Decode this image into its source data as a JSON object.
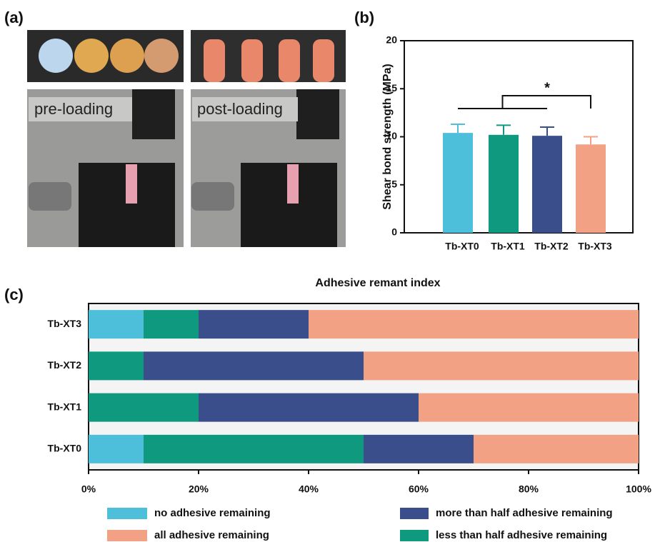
{
  "panel_labels": [
    "(a)",
    "(b)",
    "(c)"
  ],
  "photo_labels": [
    "pre-loading",
    "post-loading"
  ],
  "chart_data": [
    {
      "type": "bar",
      "y_label": "Shear bond strength (MPa)",
      "categories": [
        "Tb-XT0",
        "Tb-XT1",
        "Tb-XT2",
        "Tb-XT3"
      ],
      "values": [
        10.4,
        10.2,
        10.1,
        9.2
      ],
      "errors": [
        0.9,
        1.0,
        0.9,
        0.8
      ],
      "colors": [
        "#4dbfdb",
        "#0f9a7f",
        "#3b4e8c",
        "#f2a184"
      ],
      "ylim": [
        0,
        20
      ],
      "yticks": [
        0,
        5,
        10,
        15,
        20
      ],
      "annotation": "*"
    },
    {
      "type": "stacked_barh",
      "title": "Adhesive remant index",
      "categories": [
        "Tb-XT0",
        "Tb-XT1",
        "Tb-XT2",
        "Tb-XT3"
      ],
      "series": [
        {
          "name": "no adhesive remaining",
          "color": "#4dbfdb",
          "values": [
            10,
            0,
            0,
            10
          ]
        },
        {
          "name": "less than half adhesive remaining",
          "color": "#0f9a7f",
          "values": [
            40,
            20,
            10,
            10
          ]
        },
        {
          "name": "more than half adhesive remaining",
          "color": "#3b4e8c",
          "values": [
            20,
            40,
            40,
            20
          ]
        },
        {
          "name": "all adhesive remaining",
          "color": "#f2a184",
          "values": [
            30,
            40,
            50,
            60
          ]
        }
      ],
      "xlim": [
        0,
        100
      ],
      "xticks": [
        {
          "value": 0,
          "label": "0%"
        },
        {
          "value": 20,
          "label": "20%"
        },
        {
          "value": 40,
          "label": "40%"
        },
        {
          "value": 60,
          "label": "60%"
        },
        {
          "value": 80,
          "label": "80%"
        },
        {
          "value": 100,
          "label": "100%"
        }
      ]
    }
  ]
}
